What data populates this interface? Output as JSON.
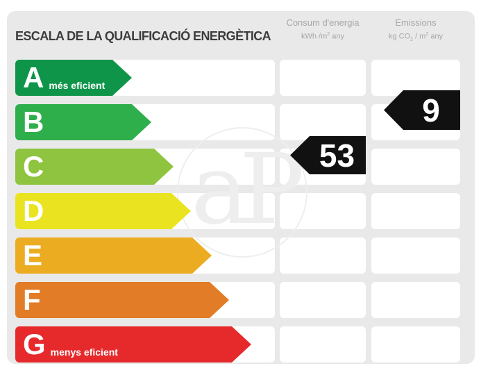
{
  "title": "ESCALA DE LA QUALIFICACIÓ ENERGÈTICA",
  "columns": {
    "consum": {
      "title": "Consum d'energia",
      "unit_pre": "kWh /m",
      "unit_sup": "2",
      "unit_post": " any"
    },
    "emissions": {
      "title": "Emissions",
      "unit_pre": "kg CO",
      "unit_sub": "2",
      "unit_mid": " / m",
      "unit_sup": "2",
      "unit_post": " any"
    }
  },
  "ratings": [
    {
      "letter": "A",
      "label": "més eficient",
      "color": "#0f9549",
      "arrow_width": 168
    },
    {
      "letter": "B",
      "label": "",
      "color": "#2fae4c",
      "arrow_width": 196
    },
    {
      "letter": "C",
      "label": "",
      "color": "#8ec43f",
      "arrow_width": 228
    },
    {
      "letter": "D",
      "label": "",
      "color": "#eae420",
      "arrow_width": 253
    },
    {
      "letter": "E",
      "label": "",
      "color": "#ecac21",
      "arrow_width": 283
    },
    {
      "letter": "F",
      "label": "",
      "color": "#e27c27",
      "arrow_width": 308
    },
    {
      "letter": "G",
      "label": "menys eficient",
      "color": "#e62a2c",
      "arrow_width": 340
    }
  ],
  "indicators": {
    "consum": {
      "value": "53",
      "rating": "C"
    },
    "emissions": {
      "value": "9",
      "rating": "B"
    }
  },
  "watermark": {
    "text": "aP"
  },
  "chart_data": {
    "type": "bar",
    "title": "ESCALA DE LA QUALIFICACIÓ ENERGÈTICA",
    "categories": [
      "A",
      "B",
      "C",
      "D",
      "E",
      "F",
      "G"
    ],
    "category_annotations": {
      "A": "més eficient",
      "G": "menys eficient"
    },
    "bar_colors": [
      "#0f9549",
      "#2fae4c",
      "#8ec43f",
      "#eae420",
      "#ecac21",
      "#e27c27",
      "#e62a2c"
    ],
    "bar_lengths_relative": [
      168,
      196,
      228,
      253,
      283,
      308,
      340
    ],
    "series": [
      {
        "name": "Consum d'energia (kWh/m2 any)",
        "category": "C",
        "value": 53
      },
      {
        "name": "Emissions (kg CO2 / m2 any)",
        "category": "B",
        "value": 9
      }
    ],
    "legend_position": "none",
    "grid": false
  }
}
